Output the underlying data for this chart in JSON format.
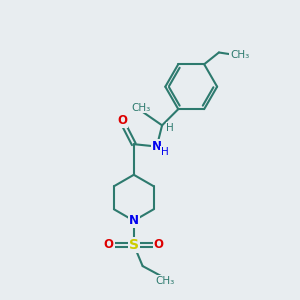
{
  "background_color": "#e8edf0",
  "bond_color": "#2d7a6e",
  "bond_width": 1.5,
  "atom_colors": {
    "N": "#0000ee",
    "O": "#dd0000",
    "S": "#cccc00",
    "C": "#2d7a6e",
    "H": "#2d7a6e"
  },
  "font_size_atom": 8.5,
  "font_size_small": 7.0,
  "fig_size": [
    3.0,
    3.0
  ],
  "dpi": 100,
  "xlim": [
    0,
    10
  ],
  "ylim": [
    0,
    10
  ]
}
